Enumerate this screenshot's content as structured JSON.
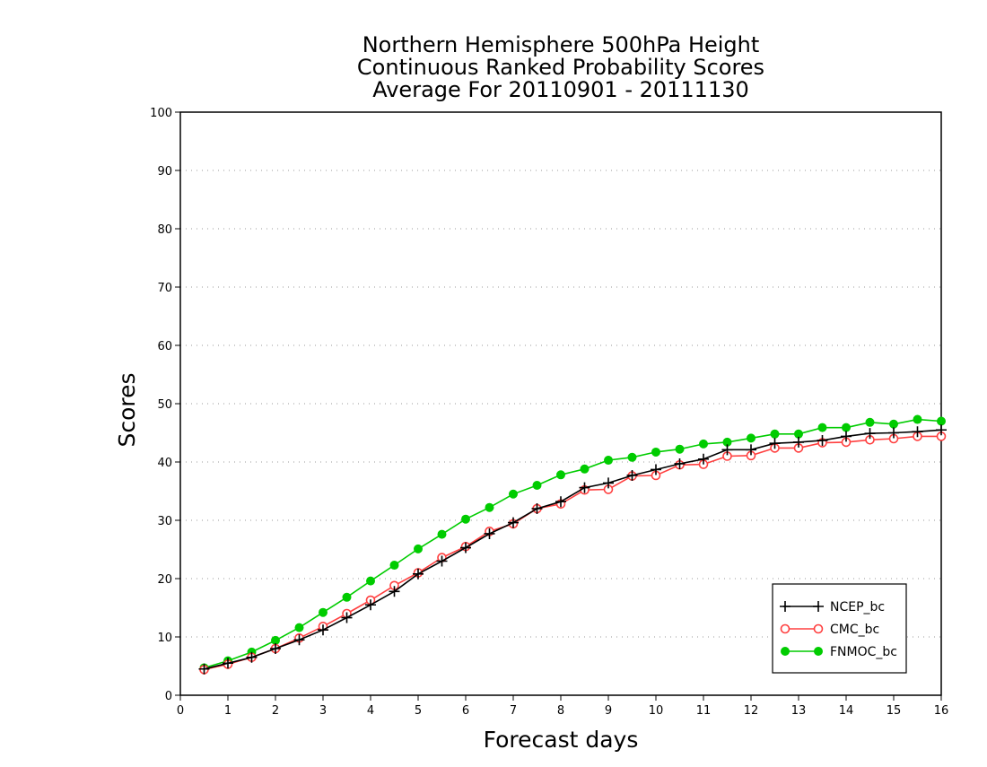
{
  "chart_data": {
    "type": "line",
    "title": [
      "Northern Hemisphere 500hPa Height",
      "Continuous Ranked Probability Scores",
      "Average For 20110901 - 20111130"
    ],
    "xlabel": "Forecast days",
    "ylabel": "Scores",
    "xlim": [
      0,
      16
    ],
    "ylim": [
      0,
      100
    ],
    "x_ticks": [
      "0",
      "1",
      "2",
      "3",
      "4",
      "5",
      "6",
      "7",
      "8",
      "9",
      "10",
      "11",
      "12",
      "13",
      "14",
      "15",
      "16"
    ],
    "y_ticks": [
      "0",
      "10",
      "20",
      "30",
      "40",
      "50",
      "60",
      "70",
      "80",
      "90",
      "100"
    ],
    "grid": "horizontal dotted",
    "legend_position": "bottom-right",
    "x": [
      0.5,
      1,
      1.5,
      2,
      2.5,
      3,
      3.5,
      4,
      4.5,
      5,
      5.5,
      6,
      6.5,
      7,
      7.5,
      8,
      8.5,
      9,
      9.5,
      10,
      10.5,
      11,
      11.5,
      12,
      12.5,
      13,
      13.5,
      14,
      14.5,
      15,
      15.5,
      16
    ],
    "series": [
      {
        "name": "NCEP_bc",
        "color": "#000000",
        "marker": "plus",
        "values": [
          4.5,
          5.5,
          6.5,
          8,
          9.5,
          11.2,
          13.3,
          15.5,
          17.8,
          20.8,
          23,
          25.3,
          27.7,
          29.6,
          32,
          33.2,
          35.6,
          36.4,
          37.7,
          38.7,
          39.7,
          40.5,
          42.1,
          42.1,
          43.2,
          43.4,
          43.7,
          44.4,
          44.9,
          45,
          45.2,
          45.5
        ]
      },
      {
        "name": "CMC_bc",
        "color": "#ff4040",
        "marker": "open-circle",
        "values": [
          4.4,
          5.3,
          6.5,
          8,
          9.8,
          11.8,
          14,
          16.3,
          18.8,
          21,
          23.6,
          25.5,
          28.1,
          29.4,
          32,
          32.8,
          35.2,
          35.3,
          37.6,
          37.7,
          39.5,
          39.6,
          41,
          41.1,
          42.4,
          42.4,
          43.3,
          43.4,
          43.8,
          44,
          44.4,
          44.4
        ]
      },
      {
        "name": "FNMOC_bc",
        "color": "#00cc00",
        "marker": "filled-circle",
        "values": [
          4.7,
          5.9,
          7.4,
          9.4,
          11.6,
          14.2,
          16.8,
          19.6,
          22.3,
          25.1,
          27.6,
          30.2,
          32.2,
          34.5,
          36,
          37.8,
          38.8,
          40.3,
          40.8,
          41.7,
          42.2,
          43.1,
          43.4,
          44.1,
          44.8,
          44.8,
          45.9,
          45.9,
          46.8,
          46.5,
          47.3,
          47
        ]
      }
    ]
  }
}
